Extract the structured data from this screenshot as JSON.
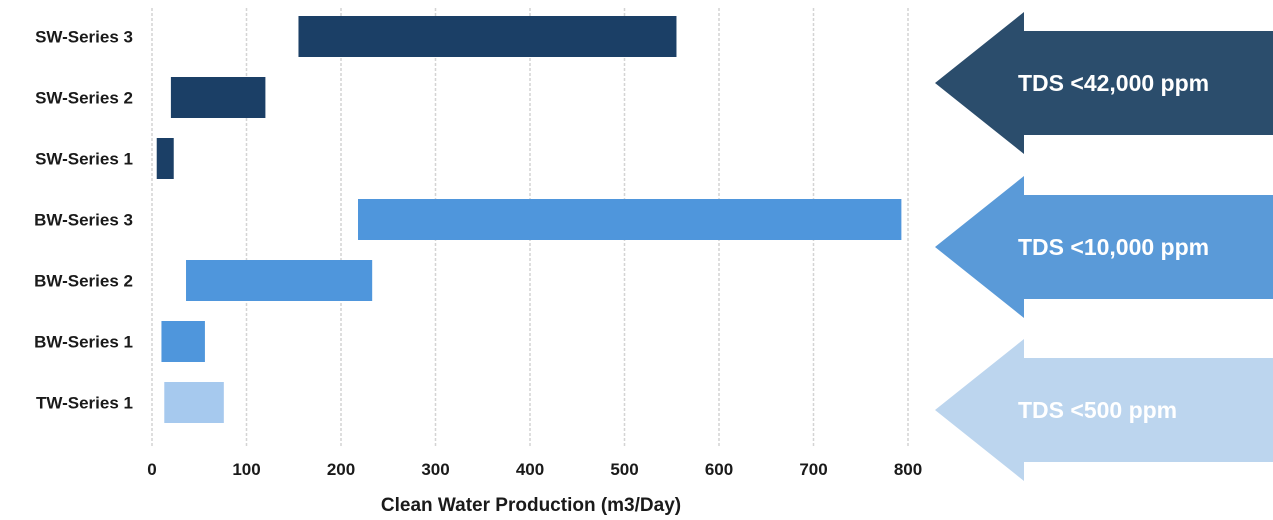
{
  "chart_data": {
    "type": "bar",
    "orientation": "horizontal",
    "subtype": "floating-range",
    "xlabel": "Clean Water Production (m3/Day)",
    "xlim": [
      0,
      800
    ],
    "xticks": [
      0,
      100,
      200,
      300,
      400,
      500,
      600,
      700,
      800
    ],
    "grid": "vertical-dashed",
    "categories": [
      "SW-Series 3",
      "SW-Series 2",
      "SW-Series 1",
      "BW-Series 3",
      "BW-Series 2",
      "BW-Series 1",
      "TW-Series 1"
    ],
    "ranges": [
      {
        "label": "SW-Series 3",
        "start": 155,
        "end": 555,
        "color": "#1b3f66"
      },
      {
        "label": "SW-Series 2",
        "start": 20,
        "end": 120,
        "color": "#1b3f66"
      },
      {
        "label": "SW-Series 1",
        "start": 5,
        "end": 23,
        "color": "#1b3f66"
      },
      {
        "label": "BW-Series 3",
        "start": 218,
        "end": 793,
        "color": "#4f96dc"
      },
      {
        "label": "BW-Series 2",
        "start": 36,
        "end": 233,
        "color": "#4f96dc"
      },
      {
        "label": "BW-Series 1",
        "start": 10,
        "end": 56,
        "color": "#4f96dc"
      },
      {
        "label": "TW-Series 1",
        "start": 13,
        "end": 76,
        "color": "#a6c9ee"
      }
    ],
    "annotations": [
      {
        "text": "TDS <42,000 ppm",
        "color": "#2b4d6c",
        "group": "SW"
      },
      {
        "text": "TDS <10,000 ppm",
        "color": "#5a9ad8",
        "group": "BW"
      },
      {
        "text": "TDS <500 ppm",
        "color": "#bcd5ee",
        "group": "TW"
      }
    ]
  }
}
